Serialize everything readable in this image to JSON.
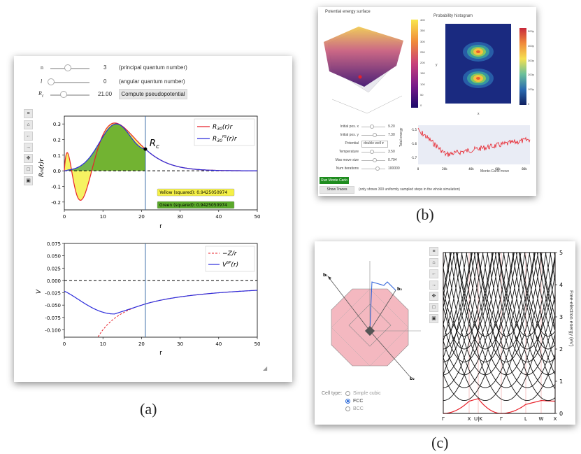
{
  "captions": {
    "a": "(a)",
    "b": "(b)",
    "c": "(c)"
  },
  "panel_a": {
    "controls": [
      {
        "label": "n",
        "value": "3",
        "desc": "(principal quantum number)"
      },
      {
        "label": "l",
        "value": "0",
        "desc": "(angular quantum number)"
      },
      {
        "label": "Rc",
        "value": "21.00",
        "desc": ""
      }
    ],
    "compute_button": "Compute pseudopotential",
    "toolbar_icons": [
      "menu-icon",
      "home-icon",
      "back-arrow-icon",
      "forward-arrow-icon",
      "pan-icon",
      "zoom-rect-icon",
      "save-icon"
    ],
    "plot1": {
      "legend": [
        "R30(r)r",
        "R30PS(r)r"
      ],
      "rc_label": "Rc",
      "yellow_label": "Yellow (squared): 0.9425050974",
      "green_label": "Green (squared): 0.9425050974",
      "ylabel": "Rnl(r)r",
      "xlabel": "r",
      "yticks": [
        "0.3",
        "0.2",
        "0.1",
        "0.0",
        "-0.1",
        "-0.2"
      ],
      "xticks": [
        "0",
        "10",
        "20",
        "30",
        "40",
        "50"
      ]
    },
    "plot2": {
      "legend": [
        "-Z/r",
        "VSP(r)"
      ],
      "ylabel": "V",
      "xlabel": "r",
      "yticks": [
        "0.075",
        "0.050",
        "0.025",
        "0.000",
        "-0.025",
        "-0.050",
        "-0.075",
        "-0.100"
      ],
      "xticks": [
        "0",
        "10",
        "20",
        "30",
        "40",
        "50"
      ]
    }
  },
  "panel_b": {
    "surface_title": "Potential energy surface",
    "hist_title": "Probability histogram",
    "surface_colorbar": [
      "400",
      "350",
      "300",
      "250",
      "200",
      "150",
      "100",
      "50",
      "0"
    ],
    "hist_colorbar": [
      "500p",
      "400p",
      "300p",
      "200p",
      "100p",
      "0"
    ],
    "hist_xlabel": "x",
    "hist_ylabel": "y",
    "params": [
      {
        "label": "Initial pos. x",
        "value": "9.20"
      },
      {
        "label": "Initial pos. y",
        "value": "7.30"
      },
      {
        "label": "Potential",
        "value": "double well"
      },
      {
        "label": "Temperature",
        "value": "3.50"
      },
      {
        "label": "Max move size",
        "value": "0.794"
      },
      {
        "label": "Num iterations",
        "value": "100000"
      }
    ],
    "run_button": "Run Monte Carlo",
    "show_traces_button": "Show Traces",
    "traces_note": "(only shows 300 uniformly sampled steps in the whole simulation)",
    "energy_ylabel": "Total energy",
    "energy_xlabel": "Monte-Carlo move",
    "energy_xticks": [
      "0",
      "20k",
      "40k",
      "60k",
      "80k"
    ],
    "energy_yticks": [
      "-1.5",
      "-1.6",
      "-1.7"
    ]
  },
  "panel_c": {
    "cell_type_label": "Cell type:",
    "cell_options": [
      "Simple cubic",
      "FCC",
      "BCC"
    ],
    "selected_cell": "FCC",
    "band_ylabel": "Free-electron energy (eV)",
    "band_yticks": [
      "5",
      "4",
      "3",
      "2",
      "1",
      "0"
    ],
    "kpoints": [
      "Γ",
      "X",
      "U|K",
      "Γ",
      "L",
      "W",
      "X"
    ],
    "bz_labels": [
      "b1",
      "b2",
      "b3"
    ],
    "toolbar_icons": [
      "menu-icon",
      "home-icon",
      "back-arrow-icon",
      "forward-arrow-icon",
      "pan-icon",
      "zoom-rect-icon",
      "save-icon"
    ]
  },
  "colors": {
    "red": "#e8212a",
    "blue": "#2b2bdb",
    "green": "#5aa82a",
    "yellow": "#f5f046",
    "run_green": "#1e8c1e"
  }
}
